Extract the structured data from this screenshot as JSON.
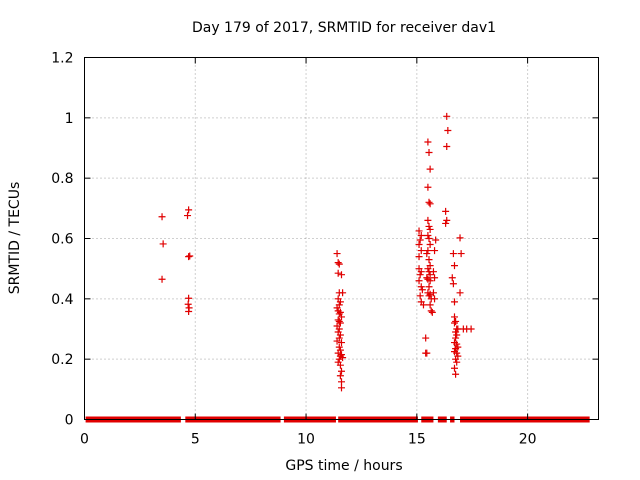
{
  "chart_data": {
    "type": "scatter",
    "title": "Day 179 of 2017, SRMTID for receiver dav1",
    "xlabel": "GPS time / hours",
    "ylabel": "SRMTID / TECUs",
    "xlim": [
      0,
      23.2
    ],
    "ylim": [
      0,
      1.2
    ],
    "x_ticks": [
      0,
      5,
      10,
      15,
      20
    ],
    "y_ticks": [
      0,
      0.2,
      0.4,
      0.6,
      0.8,
      1,
      1.2
    ],
    "x_tick_labels": [
      "0",
      "5",
      "10",
      "15",
      "20"
    ],
    "y_tick_labels": [
      "0",
      "0.2",
      "0.4",
      "0.6",
      "0.8",
      "1",
      "1.2"
    ],
    "grid": true,
    "marker": "+",
    "series_color": "#e00000",
    "zero_segments": [
      [
        0.05,
        4.35
      ],
      [
        4.55,
        8.85
      ],
      [
        9.0,
        11.35
      ],
      [
        11.45,
        15.05
      ],
      [
        15.2,
        15.75
      ],
      [
        15.95,
        16.35
      ],
      [
        16.5,
        16.7
      ],
      [
        16.95,
        22.8
      ]
    ],
    "points": [
      [
        3.5,
        0.672
      ],
      [
        3.55,
        0.582
      ],
      [
        3.5,
        0.465
      ],
      [
        4.7,
        0.695
      ],
      [
        4.65,
        0.676
      ],
      [
        4.7,
        0.54
      ],
      [
        4.75,
        0.542
      ],
      [
        4.7,
        0.402
      ],
      [
        4.68,
        0.382
      ],
      [
        4.72,
        0.37
      ],
      [
        4.7,
        0.358
      ],
      [
        11.4,
        0.55
      ],
      [
        11.45,
        0.52
      ],
      [
        11.5,
        0.515
      ],
      [
        11.45,
        0.485
      ],
      [
        11.6,
        0.48
      ],
      [
        11.5,
        0.42
      ],
      [
        11.65,
        0.42
      ],
      [
        11.45,
        0.4
      ],
      [
        11.55,
        0.39
      ],
      [
        11.5,
        0.38
      ],
      [
        11.4,
        0.37
      ],
      [
        11.45,
        0.36
      ],
      [
        11.55,
        0.355
      ],
      [
        11.5,
        0.35
      ],
      [
        11.6,
        0.34
      ],
      [
        11.45,
        0.33
      ],
      [
        11.5,
        0.325
      ],
      [
        11.55,
        0.32
      ],
      [
        11.4,
        0.31
      ],
      [
        11.5,
        0.3
      ],
      [
        11.45,
        0.29
      ],
      [
        11.55,
        0.28
      ],
      [
        11.5,
        0.27
      ],
      [
        11.4,
        0.26
      ],
      [
        11.6,
        0.255
      ],
      [
        11.5,
        0.24
      ],
      [
        11.55,
        0.23
      ],
      [
        11.45,
        0.22
      ],
      [
        11.6,
        0.215
      ],
      [
        11.55,
        0.21
      ],
      [
        11.65,
        0.205
      ],
      [
        11.5,
        0.2
      ],
      [
        11.45,
        0.19
      ],
      [
        11.55,
        0.18
      ],
      [
        11.6,
        0.16
      ],
      [
        11.55,
        0.145
      ],
      [
        11.6,
        0.125
      ],
      [
        11.6,
        0.105
      ],
      [
        15.1,
        0.625
      ],
      [
        15.2,
        0.61
      ],
      [
        15.15,
        0.595
      ],
      [
        15.1,
        0.58
      ],
      [
        15.2,
        0.56
      ],
      [
        15.1,
        0.54
      ],
      [
        15.1,
        0.5
      ],
      [
        15.2,
        0.49
      ],
      [
        15.15,
        0.48
      ],
      [
        15.1,
        0.46
      ],
      [
        15.2,
        0.44
      ],
      [
        15.25,
        0.43
      ],
      [
        15.15,
        0.41
      ],
      [
        15.2,
        0.39
      ],
      [
        15.3,
        0.38
      ],
      [
        15.4,
        0.27
      ],
      [
        15.4,
        0.22
      ],
      [
        15.45,
        0.22
      ],
      [
        15.5,
        0.92
      ],
      [
        15.55,
        0.885
      ],
      [
        15.6,
        0.83
      ],
      [
        15.5,
        0.77
      ],
      [
        15.55,
        0.72
      ],
      [
        15.6,
        0.715
      ],
      [
        15.5,
        0.66
      ],
      [
        15.55,
        0.64
      ],
      [
        15.6,
        0.63
      ],
      [
        15.5,
        0.61
      ],
      [
        15.55,
        0.6
      ],
      [
        15.6,
        0.58
      ],
      [
        15.5,
        0.56
      ],
      [
        15.45,
        0.55
      ],
      [
        15.55,
        0.53
      ],
      [
        15.6,
        0.51
      ],
      [
        15.5,
        0.5
      ],
      [
        15.55,
        0.49
      ],
      [
        15.6,
        0.48
      ],
      [
        15.45,
        0.47
      ],
      [
        15.5,
        0.465
      ],
      [
        15.6,
        0.46
      ],
      [
        15.55,
        0.44
      ],
      [
        15.5,
        0.42
      ],
      [
        15.6,
        0.415
      ],
      [
        15.55,
        0.41
      ],
      [
        15.65,
        0.4
      ],
      [
        15.6,
        0.38
      ],
      [
        15.65,
        0.36
      ],
      [
        15.7,
        0.355
      ],
      [
        15.75,
        0.49
      ],
      [
        15.8,
        0.47
      ],
      [
        15.75,
        0.42
      ],
      [
        15.8,
        0.4
      ],
      [
        15.85,
        0.595
      ],
      [
        15.8,
        0.56
      ],
      [
        16.35,
        1.005
      ],
      [
        16.4,
        0.958
      ],
      [
        16.35,
        0.905
      ],
      [
        16.3,
        0.69
      ],
      [
        16.35,
        0.66
      ],
      [
        16.3,
        0.65
      ],
      [
        16.65,
        0.55
      ],
      [
        16.7,
        0.51
      ],
      [
        16.6,
        0.47
      ],
      [
        16.65,
        0.45
      ],
      [
        16.7,
        0.39
      ],
      [
        16.7,
        0.34
      ],
      [
        16.75,
        0.325
      ],
      [
        16.7,
        0.32
      ],
      [
        16.8,
        0.3
      ],
      [
        16.75,
        0.29
      ],
      [
        16.85,
        0.3
      ],
      [
        16.8,
        0.28
      ],
      [
        16.75,
        0.27
      ],
      [
        16.7,
        0.255
      ],
      [
        16.8,
        0.25
      ],
      [
        16.85,
        0.24
      ],
      [
        16.75,
        0.235
      ],
      [
        16.7,
        0.225
      ],
      [
        16.8,
        0.22
      ],
      [
        16.85,
        0.21
      ],
      [
        16.75,
        0.2
      ],
      [
        16.8,
        0.19
      ],
      [
        16.7,
        0.17
      ],
      [
        16.75,
        0.15
      ],
      [
        16.95,
        0.602
      ],
      [
        17.0,
        0.55
      ],
      [
        16.95,
        0.42
      ],
      [
        17.1,
        0.3
      ],
      [
        17.25,
        0.3
      ],
      [
        17.45,
        0.3
      ]
    ]
  }
}
